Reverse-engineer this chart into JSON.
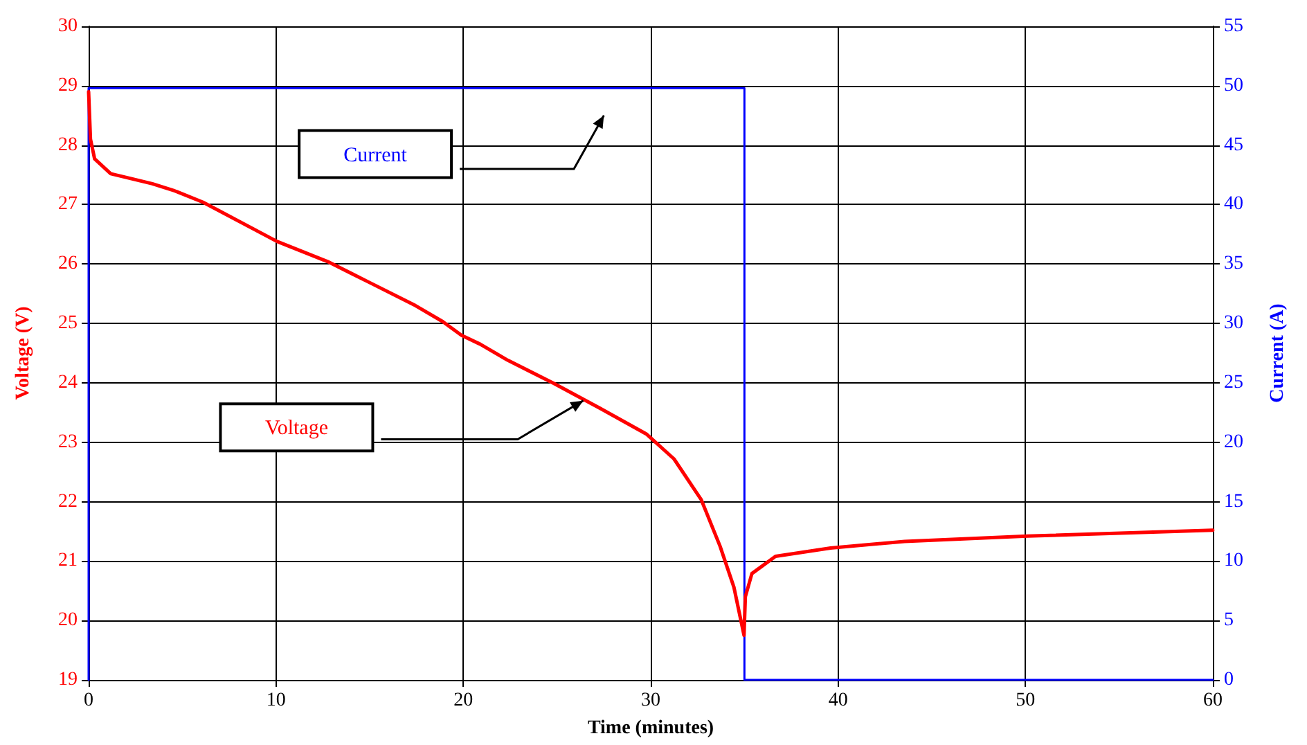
{
  "chart_data": {
    "type": "line",
    "xlabel": "Time (minutes)",
    "ylabel": "Voltage (V)",
    "y2label": "Current (A)",
    "xlim": [
      0,
      60
    ],
    "xticks": [
      0,
      10,
      20,
      30,
      40,
      50,
      60
    ],
    "ylim": [
      19,
      30
    ],
    "yticks": [
      19,
      20,
      21,
      22,
      23,
      24,
      25,
      26,
      27,
      28,
      29,
      30
    ],
    "y2lim": [
      0,
      55
    ],
    "y2ticks": [
      0,
      5,
      10,
      15,
      20,
      25,
      30,
      35,
      40,
      45,
      50,
      55
    ],
    "grid": true,
    "legend": false,
    "marker": "none",
    "line_style": "solid",
    "series": [
      {
        "name": "Voltage",
        "color": "#ff0000",
        "x": [
          0,
          0.1,
          0.32,
          1.18,
          3.4,
          4.6,
          6.1,
          10.05,
          12.76,
          14.98,
          17.44,
          18.9,
          19.9,
          20.9,
          22.37,
          24.83,
          27.3,
          29.76,
          31.24,
          32.7,
          33.7,
          34.44,
          34.98,
          35.05,
          35.4,
          36.66,
          39.6,
          43.55,
          50.1,
          60
        ],
        "values": [
          28.9,
          28.1,
          27.77,
          27.52,
          27.35,
          27.23,
          27.04,
          26.38,
          26.04,
          25.69,
          25.3,
          25.03,
          24.8,
          24.65,
          24.38,
          23.99,
          23.57,
          23.14,
          22.72,
          22.03,
          21.25,
          20.56,
          19.75,
          20.4,
          20.79,
          21.08,
          21.22,
          21.33,
          21.42,
          21.52
        ]
      },
      {
        "name": "Current",
        "color": "#0000ff",
        "axis": "y2",
        "x": [
          0,
          0,
          35,
          35,
          60
        ],
        "values": [
          0,
          49.8,
          49.8,
          0,
          0
        ]
      }
    ]
  }
}
